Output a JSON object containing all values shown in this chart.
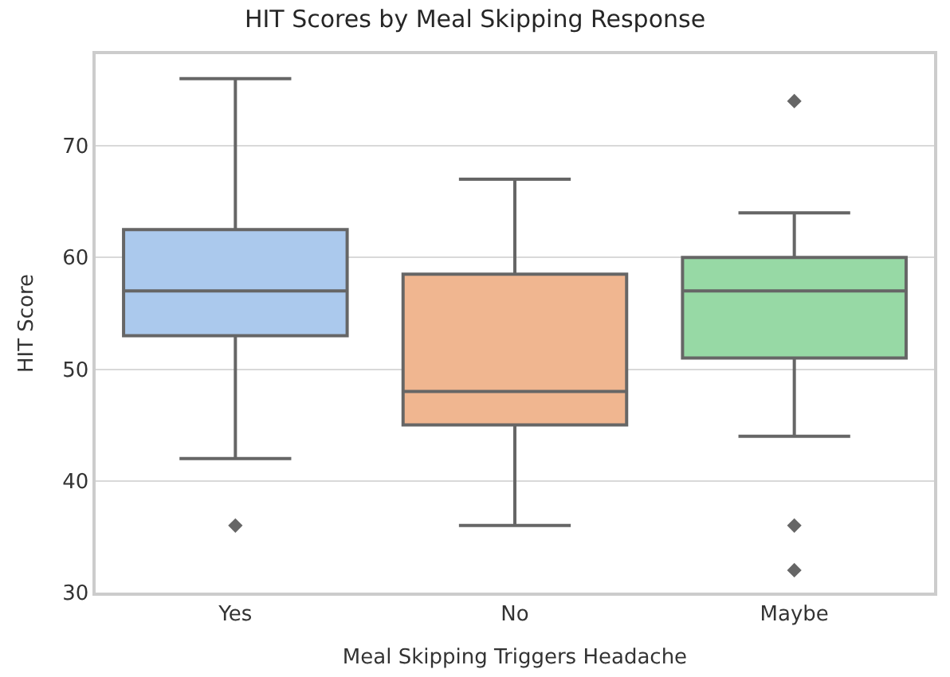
{
  "chart_data": {
    "type": "box",
    "title": "HIT Scores by Meal Skipping Response",
    "xlabel": "Meal Skipping Triggers Headache",
    "ylabel": "HIT Score",
    "categories": [
      "Yes",
      "No",
      "Maybe"
    ],
    "colors": [
      "#abc9ed",
      "#f0b690",
      "#97d9a5"
    ],
    "boxes": [
      {
        "low": 42,
        "q1": 53,
        "median": 57,
        "q3": 62.5,
        "high": 76,
        "outliers": [
          36
        ]
      },
      {
        "low": 36,
        "q1": 45,
        "median": 48,
        "q3": 58.5,
        "high": 67
      },
      {
        "low": 44,
        "q1": 51,
        "median": 57,
        "q3": 60,
        "high": 64,
        "outliers": [
          74,
          36,
          32
        ]
      }
    ],
    "ylim": [
      30,
      78.2
    ],
    "yticks": [
      30,
      40,
      50,
      60,
      70
    ],
    "grid": "y",
    "marker": "diamond"
  }
}
